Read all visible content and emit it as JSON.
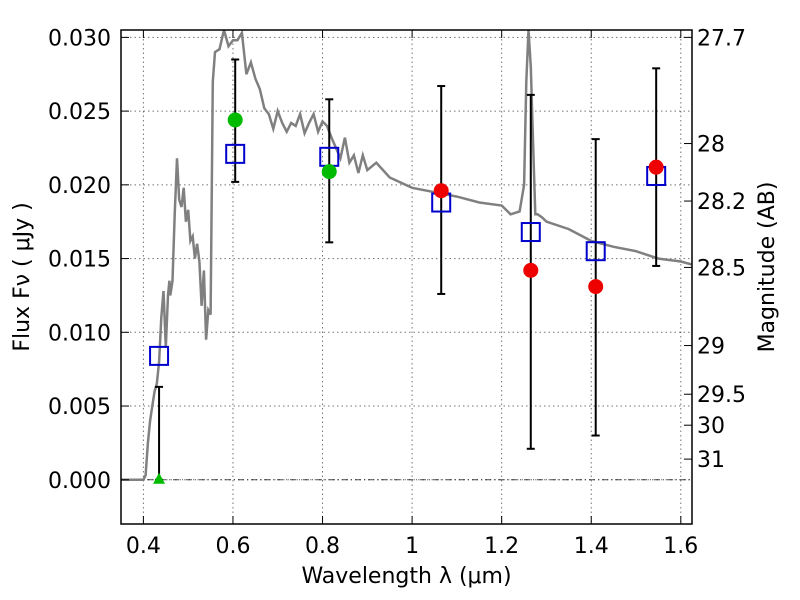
{
  "chart_data": {
    "type": "scatter",
    "xlabel": "Wavelength  λ (μm)",
    "ylabel": "Flux  Fν  ( μJy )",
    "y2label": "Magnitude (AB)",
    "xlim": [
      0.35,
      1.625
    ],
    "ylim": [
      -0.003,
      0.0305
    ],
    "xticks": [
      0.4,
      0.6,
      0.8,
      1.0,
      1.2,
      1.4,
      1.6
    ],
    "xtick_labels": [
      "0.4",
      "0.6",
      "0.8",
      "1",
      "1.2",
      "1.4",
      "1.6"
    ],
    "yticks": [
      0.0,
      0.005,
      0.01,
      0.015,
      0.02,
      0.025,
      0.03
    ],
    "ytick_labels": [
      "0.000",
      "0.005",
      "0.010",
      "0.015",
      "0.020",
      "0.025",
      "0.030"
    ],
    "y2_ticks": [
      {
        "label": "27.7",
        "flux": 0.03
      },
      {
        "label": "28",
        "flux": 0.0228
      },
      {
        "label": "28.2",
        "flux": 0.0189
      },
      {
        "label": "28.5",
        "flux": 0.0144
      },
      {
        "label": "29",
        "flux": 0.0091
      },
      {
        "label": "29.5",
        "flux": 0.0058
      },
      {
        "label": "30",
        "flux": 0.0037
      },
      {
        "label": "31",
        "flux": 0.0014
      }
    ],
    "grid": true,
    "colors": {
      "model": "#808080",
      "boxes": "#0000cc",
      "green": "#00bb00",
      "red": "#ee0000",
      "errorbar": "#000000"
    },
    "series": [
      {
        "name": "model spectrum",
        "kind": "line",
        "x": [
          0.35,
          0.4,
          0.405,
          0.41,
          0.415,
          0.42,
          0.425,
          0.43,
          0.435,
          0.44,
          0.445,
          0.45,
          0.455,
          0.458,
          0.46,
          0.465,
          0.47,
          0.475,
          0.48,
          0.485,
          0.49,
          0.495,
          0.5,
          0.505,
          0.51,
          0.515,
          0.52,
          0.525,
          0.53,
          0.535,
          0.54,
          0.545,
          0.55,
          0.555,
          0.56,
          0.57,
          0.58,
          0.59,
          0.6,
          0.61,
          0.62,
          0.63,
          0.64,
          0.65,
          0.66,
          0.67,
          0.68,
          0.69,
          0.7,
          0.71,
          0.72,
          0.73,
          0.74,
          0.75,
          0.76,
          0.77,
          0.78,
          0.79,
          0.8,
          0.81,
          0.82,
          0.83,
          0.84,
          0.85,
          0.86,
          0.87,
          0.88,
          0.89,
          0.9,
          0.92,
          0.95,
          1.0,
          1.05,
          1.1,
          1.15,
          1.2,
          1.22,
          1.24,
          1.25,
          1.255,
          1.26,
          1.265,
          1.27,
          1.275,
          1.28,
          1.29,
          1.3,
          1.35,
          1.4,
          1.45,
          1.5,
          1.55,
          1.6,
          1.625
        ],
        "y": [
          0.0,
          0.0,
          0.0003,
          0.0025,
          0.004,
          0.005,
          0.006,
          0.0065,
          0.008,
          0.011,
          0.0128,
          0.009,
          0.0125,
          0.0135,
          0.0125,
          0.0135,
          0.018,
          0.0218,
          0.019,
          0.0185,
          0.0198,
          0.0175,
          0.0183,
          0.0162,
          0.0165,
          0.015,
          0.016,
          0.0148,
          0.0118,
          0.0142,
          0.0095,
          0.0115,
          0.0112,
          0.027,
          0.029,
          0.0292,
          0.0305,
          0.0294,
          0.0298,
          0.0298,
          0.0303,
          0.0275,
          0.0283,
          0.0272,
          0.0265,
          0.0252,
          0.0248,
          0.0238,
          0.025,
          0.0242,
          0.0236,
          0.0242,
          0.024,
          0.0248,
          0.0235,
          0.0242,
          0.0248,
          0.0236,
          0.0243,
          0.024,
          0.0232,
          0.0225,
          0.0218,
          0.0232,
          0.0215,
          0.022,
          0.0208,
          0.022,
          0.021,
          0.0215,
          0.0205,
          0.0198,
          0.0195,
          0.0192,
          0.0188,
          0.0186,
          0.018,
          0.0182,
          0.02,
          0.027,
          0.0305,
          0.028,
          0.023,
          0.018,
          0.018,
          0.0178,
          0.0175,
          0.017,
          0.0162,
          0.0158,
          0.0155,
          0.015,
          0.0148,
          0.0146
        ]
      },
      {
        "name": "model band fluxes",
        "kind": "open-square",
        "x": [
          0.435,
          0.605,
          0.815,
          1.065,
          1.265,
          1.41,
          1.545
        ],
        "y": [
          0.0084,
          0.0221,
          0.0219,
          0.0188,
          0.0168,
          0.0155,
          0.0206
        ]
      },
      {
        "name": "observed (green)",
        "kind": "filled-circle",
        "x": [
          0.605,
          0.815
        ],
        "y": [
          0.0244,
          0.0209
        ],
        "yerr_low": [
          0.0202,
          0.0161
        ],
        "yerr_high": [
          0.0285,
          0.0258
        ]
      },
      {
        "name": "observed (red)",
        "kind": "filled-circle",
        "x": [
          1.065,
          1.265,
          1.41,
          1.545
        ],
        "y": [
          0.0196,
          0.0142,
          0.0131,
          0.0212
        ],
        "yerr_low": [
          0.0126,
          0.0021,
          0.003,
          0.0145
        ],
        "yerr_high": [
          0.0267,
          0.0261,
          0.0231,
          0.0279
        ]
      },
      {
        "name": "upper limit (green)",
        "kind": "triangle",
        "x": [
          0.435
        ],
        "y": [
          0.0
        ],
        "yerr_low": [
          0.0
        ],
        "yerr_high": [
          0.0063
        ]
      }
    ]
  }
}
